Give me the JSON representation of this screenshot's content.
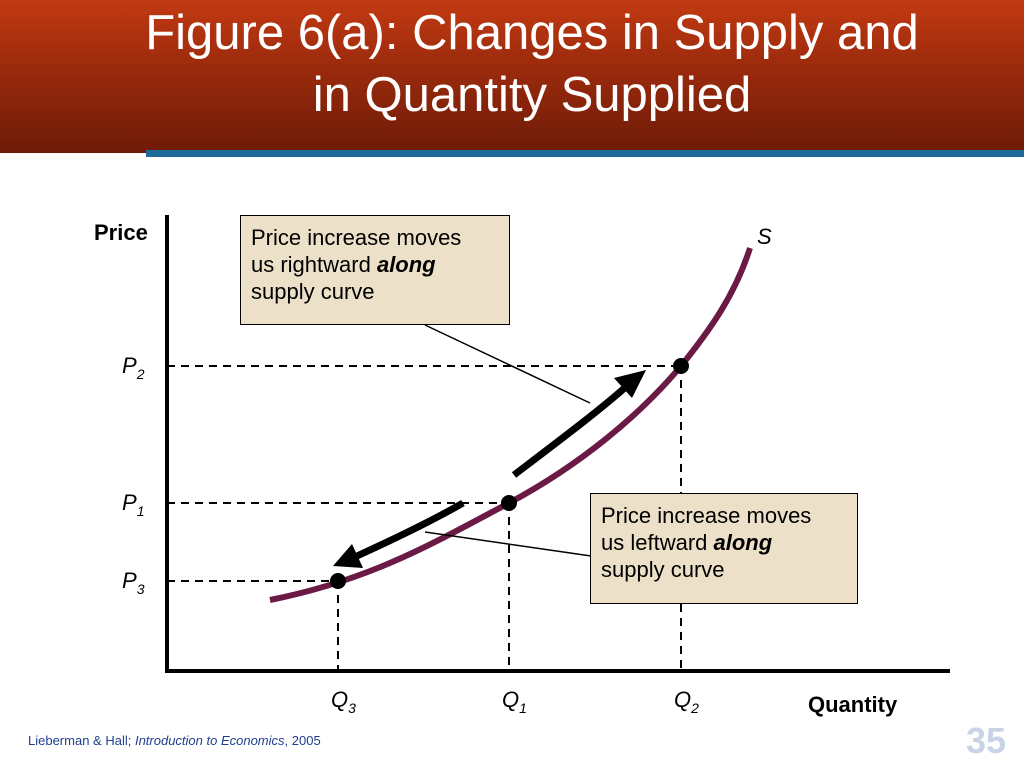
{
  "slide": {
    "title_line1": "Figure 6(a):  Changes in Supply and",
    "title_line2": "in Quantity Supplied",
    "page_number": "35"
  },
  "footer": {
    "authors": "Lieberman & Hall; ",
    "book": "Introduction to Economics",
    "year": ", 2005"
  },
  "axes": {
    "y_label": "Price",
    "x_label": "Quantity",
    "curve_label": "S"
  },
  "prices": [
    {
      "letter": "P",
      "sub": "2"
    },
    {
      "letter": "P",
      "sub": "1"
    },
    {
      "letter": "P",
      "sub": "3"
    }
  ],
  "quantities": [
    {
      "letter": "Q",
      "sub": "3"
    },
    {
      "letter": "Q",
      "sub": "1"
    },
    {
      "letter": "Q",
      "sub": "2"
    }
  ],
  "callouts": {
    "right": {
      "line1": "Price increase moves",
      "line2_pre": "us rightward ",
      "line2_em": "along",
      "line3": "supply curve"
    },
    "left": {
      "line1": "Price increase moves",
      "line2_pre": "us leftward ",
      "line2_em": "along",
      "line3": "supply curve"
    }
  },
  "colors": {
    "title_bg": "#9a2a0c",
    "accent_line": "#1b6a9a",
    "supply_curve": "#6b1a45",
    "callout_bg": "#ede0c8"
  }
}
